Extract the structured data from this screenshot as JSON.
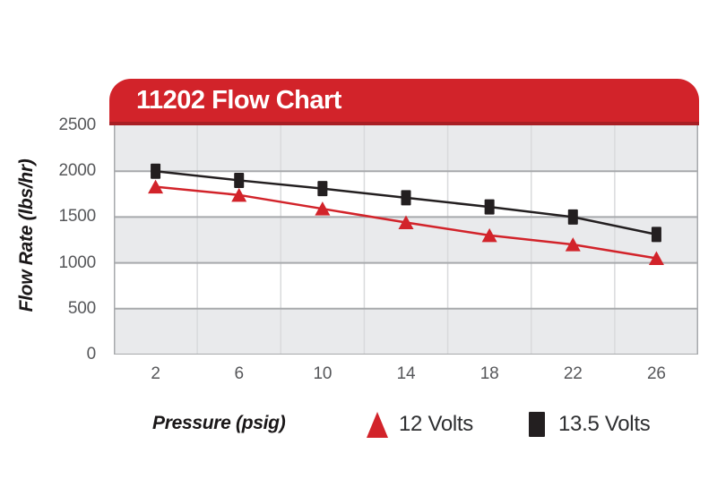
{
  "chart_data": {
    "type": "line",
    "title": "11202 Flow Chart",
    "xlabel": "Pressure (psig)",
    "ylabel": "Flow Rate (lbs/hr)",
    "categories": [
      "2",
      "6",
      "10",
      "14",
      "18",
      "22",
      "26"
    ],
    "yticks": [
      0,
      500,
      1000,
      1500,
      2000,
      2500
    ],
    "ylim": [
      0,
      2500
    ],
    "grid": true,
    "legend_position": "bottom",
    "series": [
      {
        "name": "12 Volts",
        "marker": "triangle",
        "color": "#d2232a",
        "values": [
          1830,
          1740,
          1590,
          1440,
          1300,
          1200,
          1050
        ]
      },
      {
        "name": "13.5 Volts",
        "marker": "square",
        "color": "#231f20",
        "values": [
          2000,
          1900,
          1810,
          1710,
          1610,
          1500,
          1310
        ]
      }
    ]
  },
  "colors": {
    "header_red": "#d2232a",
    "header_red_dark": "#a81e24",
    "title_text": "#ffffff",
    "band_gray": "#e9eaec",
    "band_white": "#ffffff",
    "gridline_horizontal": "#a7a9ac",
    "gridline_vertical": "#d9dadc",
    "tick_text": "#56575a",
    "legend_text": "#2e2f31"
  }
}
